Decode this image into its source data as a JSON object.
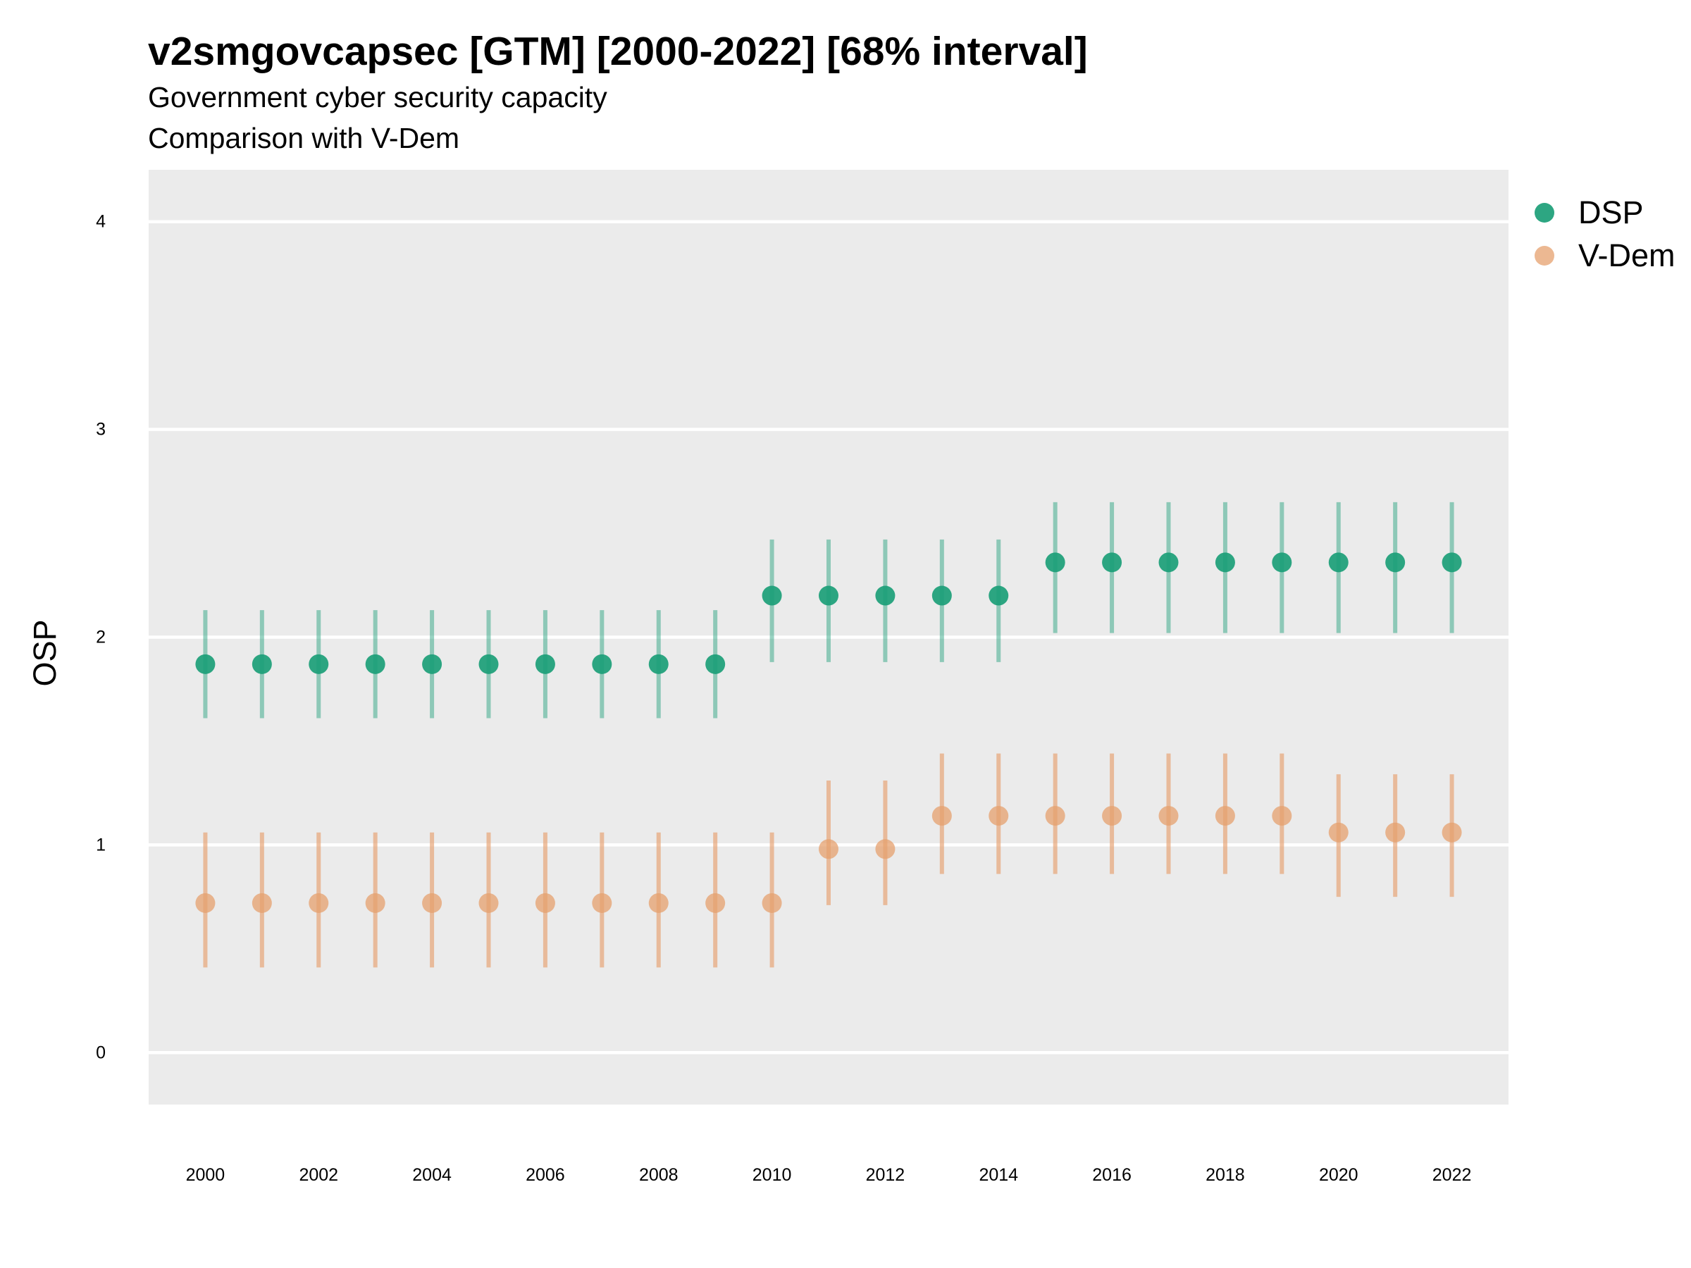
{
  "chart_data": {
    "type": "scatter",
    "title": "v2smgovcapsec [GTM] [2000-2022] [68% interval]",
    "subtitle": "Government cyber security capacity",
    "subtitle2": "Comparison with V-Dem",
    "ylabel": "OSP",
    "xlabel": "",
    "xlim": [
      1999,
      2023
    ],
    "ylim": [
      -0.25,
      4.25
    ],
    "x_ticks": [
      2000,
      2002,
      2004,
      2006,
      2008,
      2010,
      2012,
      2014,
      2016,
      2018,
      2020,
      2022
    ],
    "y_ticks": [
      0,
      1,
      2,
      3,
      4
    ],
    "grid": true,
    "legend_position": "right",
    "x": [
      2000,
      2001,
      2002,
      2003,
      2004,
      2005,
      2006,
      2007,
      2008,
      2009,
      2010,
      2011,
      2012,
      2013,
      2014,
      2015,
      2016,
      2017,
      2018,
      2019,
      2020,
      2021,
      2022
    ],
    "series": [
      {
        "name": "DSP",
        "color": "#1b9e77",
        "values": [
          1.87,
          1.87,
          1.87,
          1.87,
          1.87,
          1.87,
          1.87,
          1.87,
          1.87,
          1.87,
          2.2,
          2.2,
          2.2,
          2.2,
          2.2,
          2.36,
          2.36,
          2.36,
          2.36,
          2.36,
          2.36,
          2.36,
          2.36
        ],
        "lower": [
          1.61,
          1.61,
          1.61,
          1.61,
          1.61,
          1.61,
          1.61,
          1.61,
          1.61,
          1.61,
          1.88,
          1.88,
          1.88,
          1.88,
          1.88,
          2.02,
          2.02,
          2.02,
          2.02,
          2.02,
          2.02,
          2.02,
          2.02
        ],
        "upper": [
          2.13,
          2.13,
          2.13,
          2.13,
          2.13,
          2.13,
          2.13,
          2.13,
          2.13,
          2.13,
          2.47,
          2.47,
          2.47,
          2.47,
          2.47,
          2.65,
          2.65,
          2.65,
          2.65,
          2.65,
          2.65,
          2.65,
          2.65
        ]
      },
      {
        "name": "V-Dem",
        "color": "#e6a06e",
        "values": [
          0.72,
          0.72,
          0.72,
          0.72,
          0.72,
          0.72,
          0.72,
          0.72,
          0.72,
          0.72,
          0.72,
          0.98,
          0.98,
          1.14,
          1.14,
          1.14,
          1.14,
          1.14,
          1.14,
          1.14,
          1.06,
          1.06,
          1.06
        ],
        "lower": [
          0.41,
          0.41,
          0.41,
          0.41,
          0.41,
          0.41,
          0.41,
          0.41,
          0.41,
          0.41,
          0.41,
          0.71,
          0.71,
          0.86,
          0.86,
          0.86,
          0.86,
          0.86,
          0.86,
          0.86,
          0.75,
          0.75,
          0.75
        ],
        "upper": [
          1.06,
          1.06,
          1.06,
          1.06,
          1.06,
          1.06,
          1.06,
          1.06,
          1.06,
          1.06,
          1.06,
          1.31,
          1.31,
          1.44,
          1.44,
          1.44,
          1.44,
          1.44,
          1.44,
          1.44,
          1.34,
          1.34,
          1.34
        ]
      }
    ]
  }
}
